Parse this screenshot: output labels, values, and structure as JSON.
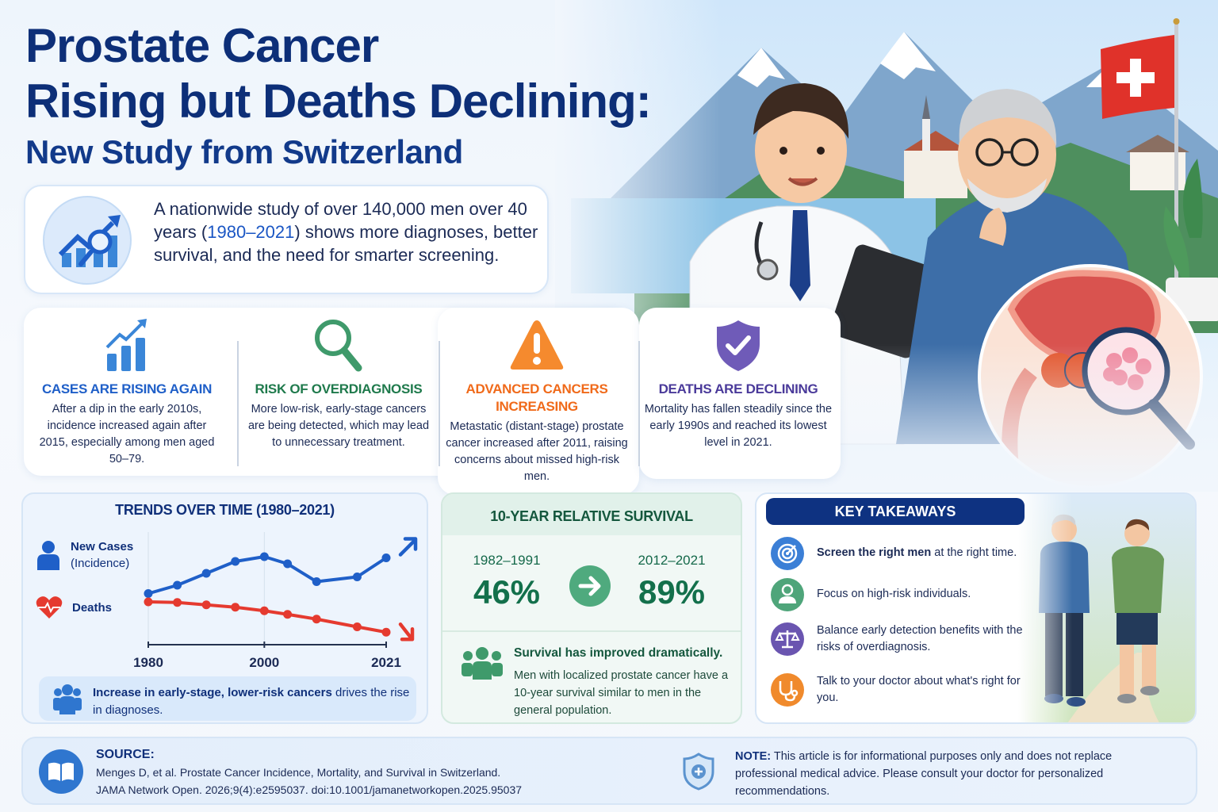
{
  "header": {
    "title_line1": "Prostate Cancer",
    "title_line2": "Rising but Deaths Declining:",
    "subtitle": "New Study from Switzerland"
  },
  "intro": {
    "icon": "chart-magnifier-icon",
    "text_before": "A nationwide study of over 140,000 men over 40 years (",
    "highlight": "1980–2021",
    "text_after": ") shows more diagnoses, better survival, and the need for smarter screening."
  },
  "features": [
    {
      "icon": "rising-bar-chart-icon",
      "title": "CASES ARE RISING AGAIN",
      "color": "#1f5fc8",
      "text": "After a dip in the early 2010s, incidence increased again after 2015, especially among men aged 50–79."
    },
    {
      "icon": "magnifier-icon",
      "title": "RISK OF OVERDIAGNOSIS",
      "color": "#1f7a4c",
      "text": "More low-risk, early-stage cancers are being detected, which may lead to unnecessary treatment."
    },
    {
      "icon": "warning-triangle-icon",
      "title": "ADVANCED CANCERS INCREASING",
      "color": "#f06a1a",
      "text": "Metastatic (distant-stage) prostate cancer increased after 2011, raising concerns about missed high-risk men."
    },
    {
      "icon": "shield-check-icon",
      "title": "DEATHS ARE DECLINING",
      "color": "#4a3a9a",
      "text": "Mortality has fallen steadily since the early 1990s and reached its lowest level in 2021."
    }
  ],
  "trends": {
    "title": "TRENDS OVER TIME (1980–2021)",
    "legend": [
      {
        "label": "New Cases",
        "sub": "(Incidence)",
        "icon": "person-icon",
        "color": "#1f5fc8"
      },
      {
        "label": "Deaths",
        "sub": "",
        "icon": "heart-pulse-icon",
        "color": "#e53a2f"
      }
    ],
    "note_bold": "Increase in early-stage, lower-risk cancers",
    "note_rest": " drives the rise in diagnoses.",
    "note_icon": "people-group-icon"
  },
  "chart_data": {
    "type": "line",
    "title": "TRENDS OVER TIME (1980–2021)",
    "xlabel": "",
    "ylabel": "",
    "x_ticks": [
      "1980",
      "2000",
      "2021"
    ],
    "x": [
      1980,
      1985,
      1990,
      1995,
      2000,
      2004,
      2009,
      2016,
      2021
    ],
    "ylim": [
      0,
      100
    ],
    "grid": false,
    "legend_position": "left",
    "series": [
      {
        "name": "New Cases (Incidence)",
        "color": "#1f5fc8",
        "trend": "up",
        "values": [
          43,
          50,
          60,
          70,
          74,
          68,
          53,
          57,
          73
        ]
      },
      {
        "name": "Deaths",
        "color": "#e53a2f",
        "trend": "down",
        "values": [
          36,
          35.5,
          33.5,
          31.5,
          28.5,
          25.5,
          21.5,
          15,
          10.5
        ]
      }
    ]
  },
  "survival": {
    "title": "10-YEAR RELATIVE SURVIVAL",
    "before_period": "1982–1991",
    "before_value": "46%",
    "after_period": "2012–2021",
    "after_value": "89%",
    "arrow_icon": "arrow-right-icon",
    "note_title": "Survival has improved dramatically.",
    "note_text": "Men with localized prostate cancer have a 10-year survival similar to men in the general population.",
    "note_icon": "people-group-icon"
  },
  "takeaways": {
    "title": "KEY TAKEAWAYS",
    "items": [
      {
        "icon": "target-icon",
        "color": "#3b7fd6",
        "bold": "Screen the right men",
        "rest": " at the right time."
      },
      {
        "icon": "person-icon",
        "color": "#4fa57a",
        "bold": "",
        "rest": "Focus on high-risk individuals."
      },
      {
        "icon": "scales-icon",
        "color": "#6a55b0",
        "bold": "",
        "rest": "Balance early detection benefits with the risks of overdiagnosis."
      },
      {
        "icon": "stethoscope-icon",
        "color": "#f08a2c",
        "bold": "",
        "rest": "Talk to your doctor about what's right for you."
      }
    ]
  },
  "footer": {
    "source_title": "SOURCE:",
    "source_line1": "Menges D, et al. Prostate Cancer Incidence, Mortality, and Survival in Switzerland.",
    "source_line2": "JAMA Network Open. 2026;9(4):e2595037. doi:10.1001/jamanetworkopen.2025.95037",
    "source_icon": "book-icon",
    "note_label": "NOTE:",
    "note_text": " This article is for informational purposes only and does not replace professional medical advice. Please consult your doctor for personalized recommendations.",
    "note_icon": "shield-plus-icon"
  },
  "colors": {
    "navy": "#0d2f78",
    "blue": "#1f5fc8",
    "red": "#e53a2f",
    "green": "#1f7a4c",
    "orange": "#f06a1a",
    "purple": "#4a3a9a",
    "swiss_red": "#e0322a"
  }
}
